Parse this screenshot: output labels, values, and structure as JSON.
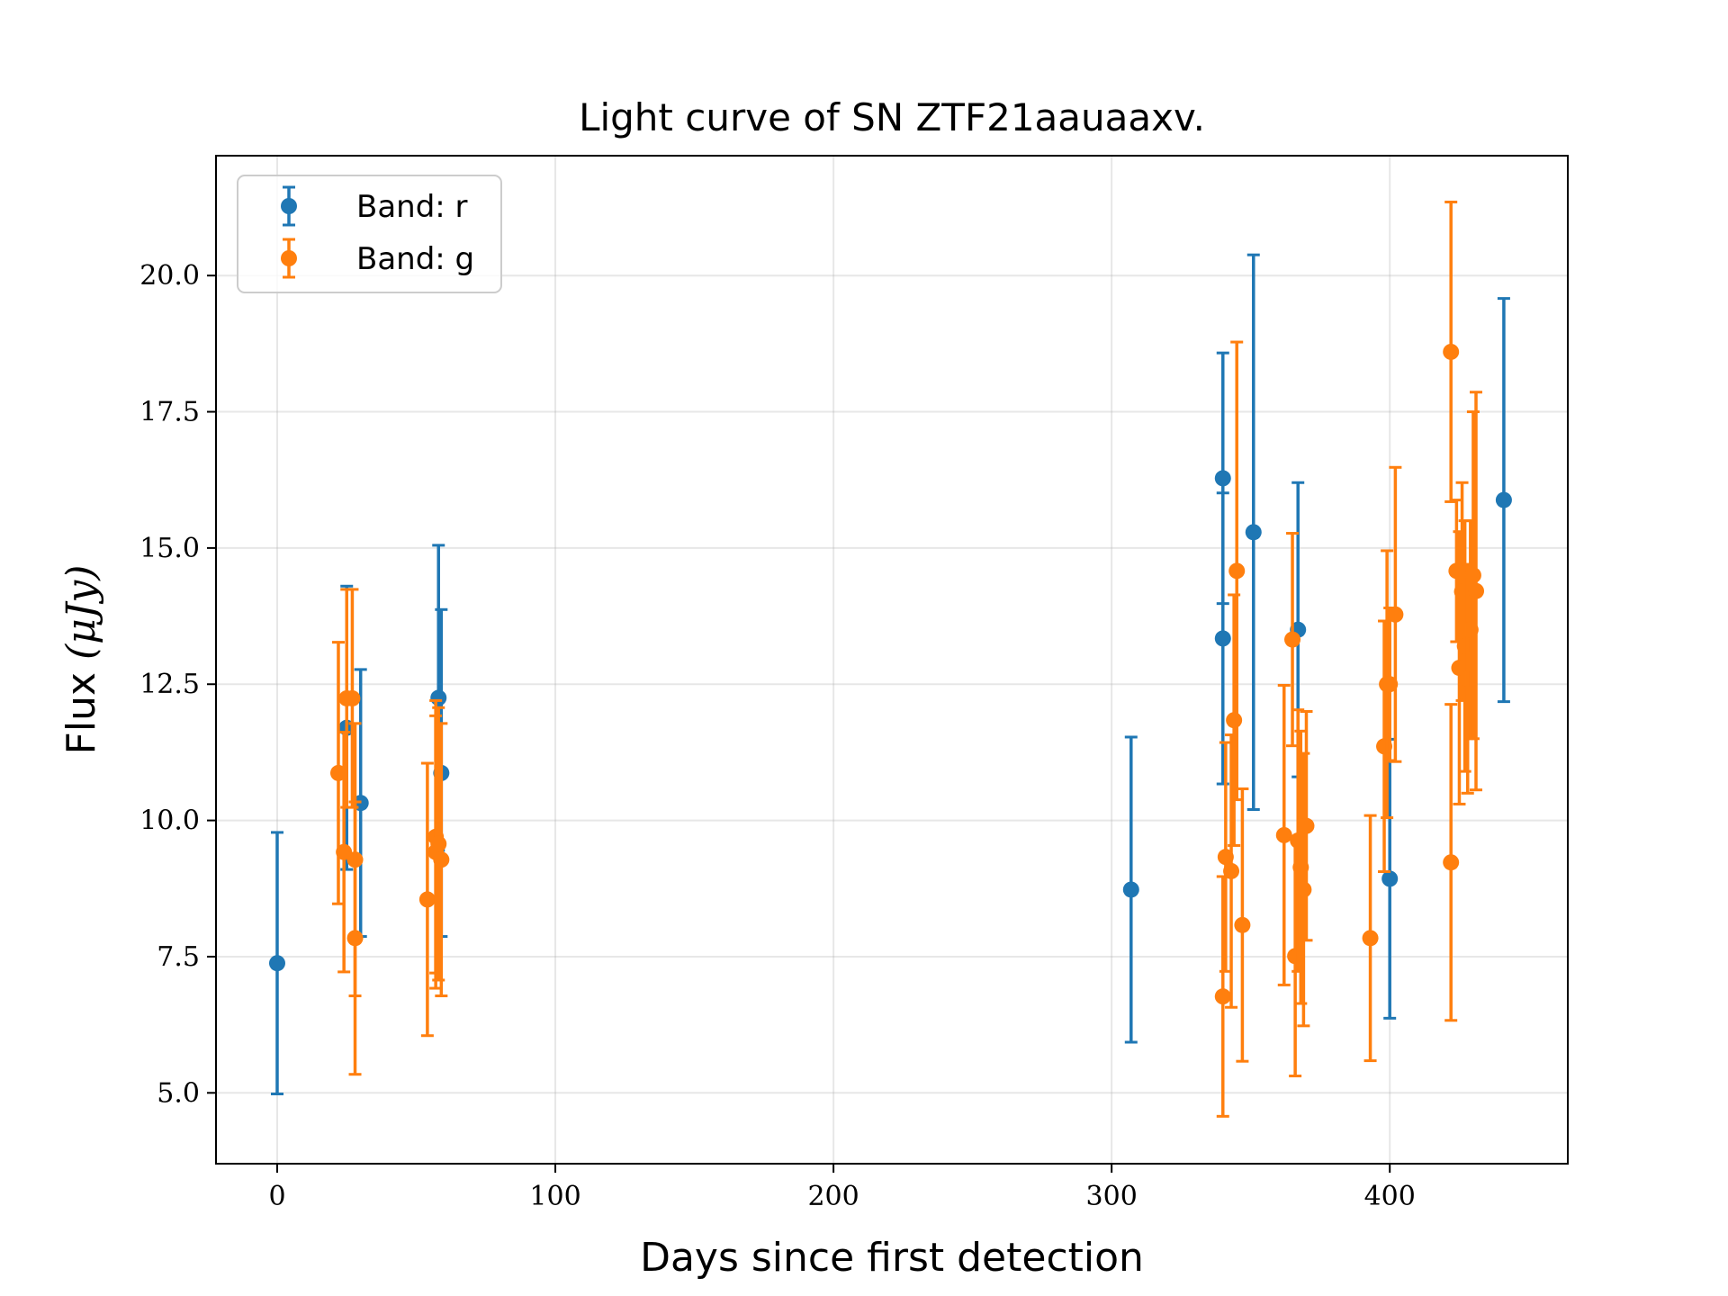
{
  "chart_data": {
    "type": "scatter",
    "title": "Light curve of SN ZTF21aauaaxv.",
    "xlabel": "Days since first detection",
    "ylabel": "Flux",
    "ylabel_unit": "(μJy)",
    "xlim": [
      -22,
      464
    ],
    "ylim": [
      3.7,
      22.2
    ],
    "xticks": [
      0,
      100,
      200,
      300,
      400
    ],
    "yticks": [
      5.0,
      7.5,
      10.0,
      12.5,
      15.0,
      17.5,
      20.0
    ],
    "xtick_labels": [
      "0",
      "100",
      "200",
      "300",
      "400"
    ],
    "ytick_labels": [
      "5.0",
      "7.5",
      "10.0",
      "12.5",
      "15.0",
      "17.5",
      "20.0"
    ],
    "grid": true,
    "legend_position": "upper-left",
    "series": [
      {
        "name": "Band: r",
        "color": "#1f77b4",
        "x": [
          0,
          25,
          30,
          58,
          59,
          307,
          340,
          340,
          351,
          367,
          400,
          441
        ],
        "y": [
          7.38,
          11.7,
          10.32,
          12.25,
          10.87,
          8.73,
          16.28,
          13.34,
          15.29,
          13.5,
          8.93,
          15.88
        ],
        "yerr": [
          2.4,
          2.6,
          2.45,
          2.8,
          3.0,
          2.8,
          2.3,
          2.67,
          5.09,
          2.7,
          2.56,
          3.7
        ]
      },
      {
        "name": "Band: g",
        "color": "#ff7f0e",
        "x": [
          22,
          24,
          25,
          27,
          28,
          28,
          54,
          57,
          57,
          58,
          59,
          340,
          341,
          343,
          344,
          345,
          347,
          362,
          365,
          366,
          367,
          368,
          369,
          370,
          393,
          398,
          399,
          400,
          402,
          422,
          422,
          424,
          425,
          426,
          427,
          428,
          429,
          430,
          431
        ],
        "y": [
          10.87,
          9.42,
          12.24,
          12.24,
          9.28,
          7.84,
          8.55,
          9.7,
          9.42,
          9.57,
          9.28,
          6.77,
          9.33,
          9.07,
          11.84,
          14.58,
          8.08,
          9.73,
          13.32,
          7.51,
          9.63,
          9.14,
          8.73,
          9.9,
          7.84,
          11.36,
          12.5,
          12.5,
          13.78,
          9.23,
          18.6,
          14.58,
          12.8,
          14.2,
          13.2,
          12.6,
          13.5,
          14.5,
          14.21
        ],
        "yerr": [
          2.4,
          2.2,
          2.0,
          2.0,
          2.5,
          2.5,
          2.5,
          2.5,
          2.5,
          2.5,
          2.5,
          2.2,
          2.1,
          2.5,
          2.3,
          4.2,
          2.5,
          2.75,
          1.95,
          2.2,
          2.4,
          2.5,
          2.5,
          2.1,
          2.25,
          2.3,
          2.45,
          1.4,
          2.7,
          2.9,
          2.75,
          1.3,
          2.5,
          2.0,
          2.3,
          2.1,
          2.0,
          3.0,
          3.65
        ]
      }
    ]
  }
}
